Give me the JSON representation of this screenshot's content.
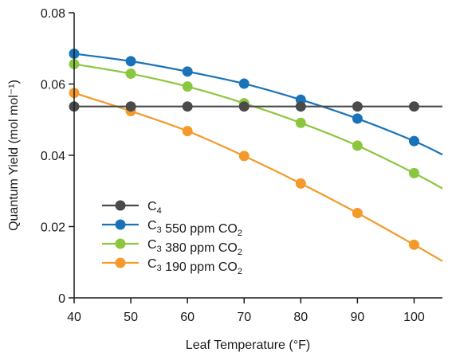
{
  "chart_data": {
    "type": "line",
    "xlabel": "Leaf Temperature (°F)",
    "ylabel": "Quantum Yield (mol mol⁻¹)",
    "xlim": [
      40,
      105
    ],
    "ylim": [
      0,
      0.08
    ],
    "x_ticks": [
      40,
      50,
      60,
      70,
      80,
      90,
      100
    ],
    "y_ticks": [
      0,
      0.02,
      0.04,
      0.06,
      0.08
    ],
    "x_tick_labels": [
      "40",
      "50",
      "60",
      "70",
      "80",
      "90",
      "100"
    ],
    "y_tick_labels": [
      "0",
      "0.02",
      "0.04",
      "0.06",
      "0.08"
    ],
    "grid": false,
    "legend_position": "bottom-left",
    "series": [
      {
        "name": "C4",
        "legend_parts": [
          {
            "t": "C"
          },
          {
            "t": "4",
            "sub": true
          }
        ],
        "color": "#4a4a4a",
        "x": [
          40,
          50,
          60,
          70,
          80,
          90,
          100
        ],
        "y": [
          0.0537,
          0.0537,
          0.0537,
          0.0537,
          0.0537,
          0.0537,
          0.0537
        ],
        "line_end": [
          105,
          0.0537
        ]
      },
      {
        "name": "C3 550 ppm CO2",
        "legend_parts": [
          {
            "t": "C"
          },
          {
            "t": "3",
            "sub": true
          },
          {
            "t": " 550 ppm CO"
          },
          {
            "t": "2",
            "sub": true
          }
        ],
        "color": "#1a73b8",
        "x": [
          40,
          50,
          60,
          70,
          80,
          90,
          100
        ],
        "y": [
          0.0685,
          0.0664,
          0.0635,
          0.0601,
          0.0556,
          0.0503,
          0.044
        ],
        "line_end": [
          105,
          0.0402
        ]
      },
      {
        "name": "C3 380 ppm CO2",
        "legend_parts": [
          {
            "t": "C"
          },
          {
            "t": "3",
            "sub": true
          },
          {
            "t": " 380 ppm CO"
          },
          {
            "t": "2",
            "sub": true
          }
        ],
        "color": "#8cc63f",
        "x": [
          40,
          50,
          60,
          70,
          80,
          90,
          100
        ],
        "y": [
          0.0656,
          0.0629,
          0.0593,
          0.0546,
          0.0491,
          0.0427,
          0.035
        ],
        "line_end": [
          105,
          0.0307
        ]
      },
      {
        "name": "C3 190 ppm CO2",
        "legend_parts": [
          {
            "t": "C"
          },
          {
            "t": "3",
            "sub": true
          },
          {
            "t": " 190 ppm CO"
          },
          {
            "t": "2",
            "sub": true
          }
        ],
        "color": "#f39a2b",
        "x": [
          40,
          50,
          60,
          70,
          80,
          90,
          100
        ],
        "y": [
          0.0575,
          0.0524,
          0.0468,
          0.0398,
          0.0321,
          0.0238,
          0.0149
        ],
        "line_end": [
          105,
          0.0103
        ]
      }
    ]
  }
}
